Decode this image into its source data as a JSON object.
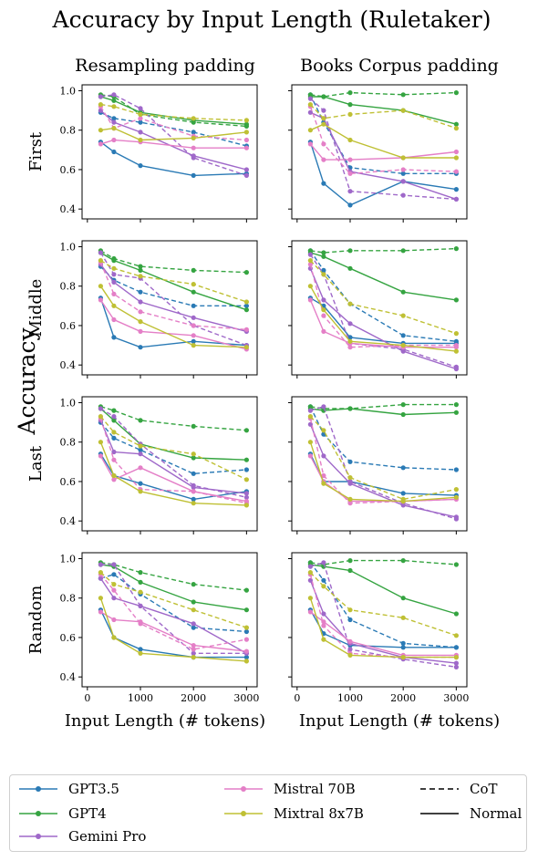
{
  "title": "Accuracy by Input Length (Ruletaker)",
  "columns": [
    "Resampling padding",
    "Books Corpus padding"
  ],
  "rows": [
    "First",
    "Middle",
    "Last",
    "Random"
  ],
  "ylabel": "Accuracy",
  "xlabel": "Input Length (# tokens)",
  "colors": {
    "GPT3.5": "#2a7ab5",
    "GPT4": "#35a441",
    "Gemini Pro": "#9f68c9",
    "Mistral 70B": "#e47fc7",
    "Mixtral 8x7B": "#bfc034"
  },
  "legend": {
    "models": [
      "GPT3.5",
      "GPT4",
      "Gemini Pro",
      "Mistral 70B",
      "Mixtral 8x7B"
    ],
    "styles": [
      {
        "label": "CoT",
        "dash": true
      },
      {
        "label": "Normal",
        "dash": false
      }
    ]
  },
  "chart_data": {
    "type": "line",
    "x": [
      250,
      500,
      1000,
      2000,
      3000
    ],
    "xticks": [
      0,
      1000,
      2000,
      3000
    ],
    "yticks": [
      0.4,
      0.6,
      0.8,
      1.0
    ],
    "xlim": [
      -100,
      3200
    ],
    "ylim": [
      0.35,
      1.03
    ],
    "grid": false,
    "legend_position": "bottom",
    "panels": [
      {
        "row": "First",
        "column": "Resampling padding",
        "series": [
          {
            "model": "GPT3.5",
            "style": "Normal",
            "values": [
              0.74,
              0.69,
              0.62,
              0.57,
              0.58
            ]
          },
          {
            "model": "GPT3.5",
            "style": "CoT",
            "values": [
              0.89,
              0.86,
              0.84,
              0.79,
              0.72
            ]
          },
          {
            "model": "GPT4",
            "style": "Normal",
            "values": [
              0.97,
              0.95,
              0.89,
              0.85,
              0.83
            ]
          },
          {
            "model": "GPT4",
            "style": "CoT",
            "values": [
              0.98,
              0.97,
              0.88,
              0.84,
              0.82
            ]
          },
          {
            "model": "Gemini Pro",
            "style": "Normal",
            "values": [
              0.9,
              0.84,
              0.79,
              0.67,
              0.6
            ]
          },
          {
            "model": "Gemini Pro",
            "style": "CoT",
            "values": [
              0.97,
              0.98,
              0.91,
              0.66,
              0.57
            ]
          },
          {
            "model": "Mistral 70B",
            "style": "Normal",
            "values": [
              0.73,
              0.75,
              0.74,
              0.71,
              0.71
            ]
          },
          {
            "model": "Mistral 70B",
            "style": "CoT",
            "values": [
              0.92,
              0.81,
              0.86,
              0.77,
              0.75
            ]
          },
          {
            "model": "Mixtral 8x7B",
            "style": "Normal",
            "values": [
              0.8,
              0.81,
              0.75,
              0.76,
              0.79
            ]
          },
          {
            "model": "Mixtral 8x7B",
            "style": "CoT",
            "values": [
              0.93,
              0.92,
              0.88,
              0.86,
              0.85
            ]
          }
        ]
      },
      {
        "row": "First",
        "column": "Books Corpus padding",
        "series": [
          {
            "model": "GPT3.5",
            "style": "Normal",
            "values": [
              0.74,
              0.53,
              0.42,
              0.54,
              0.5
            ]
          },
          {
            "model": "GPT3.5",
            "style": "CoT",
            "values": [
              0.98,
              0.84,
              0.61,
              0.58,
              0.58
            ]
          },
          {
            "model": "GPT4",
            "style": "Normal",
            "values": [
              0.97,
              0.97,
              0.93,
              0.9,
              0.83
            ]
          },
          {
            "model": "GPT4",
            "style": "CoT",
            "values": [
              0.98,
              0.97,
              0.99,
              0.98,
              0.99
            ]
          },
          {
            "model": "Gemini Pro",
            "style": "Normal",
            "values": [
              0.89,
              0.86,
              0.59,
              0.54,
              0.45
            ]
          },
          {
            "model": "Gemini Pro",
            "style": "CoT",
            "values": [
              0.96,
              0.9,
              0.49,
              0.47,
              0.45
            ]
          },
          {
            "model": "Mistral 70B",
            "style": "Normal",
            "values": [
              0.73,
              0.65,
              0.65,
              0.66,
              0.69
            ]
          },
          {
            "model": "Mistral 70B",
            "style": "CoT",
            "values": [
              0.92,
              0.73,
              0.58,
              0.6,
              0.59
            ]
          },
          {
            "model": "Mixtral 8x7B",
            "style": "Normal",
            "values": [
              0.8,
              0.83,
              0.75,
              0.66,
              0.66
            ]
          },
          {
            "model": "Mixtral 8x7B",
            "style": "CoT",
            "values": [
              0.93,
              0.86,
              0.88,
              0.9,
              0.81
            ]
          }
        ]
      },
      {
        "row": "Middle",
        "column": "Resampling padding",
        "series": [
          {
            "model": "GPT3.5",
            "style": "Normal",
            "values": [
              0.74,
              0.54,
              0.49,
              0.52,
              0.5
            ]
          },
          {
            "model": "GPT3.5",
            "style": "CoT",
            "values": [
              0.9,
              0.83,
              0.77,
              0.7,
              0.7
            ]
          },
          {
            "model": "GPT4",
            "style": "Normal",
            "values": [
              0.97,
              0.93,
              0.88,
              0.77,
              0.68
            ]
          },
          {
            "model": "GPT4",
            "style": "CoT",
            "values": [
              0.98,
              0.94,
              0.9,
              0.88,
              0.87
            ]
          },
          {
            "model": "Gemini Pro",
            "style": "Normal",
            "values": [
              0.91,
              0.82,
              0.72,
              0.64,
              0.57
            ]
          },
          {
            "model": "Gemini Pro",
            "style": "CoT",
            "values": [
              0.97,
              0.86,
              0.84,
              0.6,
              0.5
            ]
          },
          {
            "model": "Mistral 70B",
            "style": "Normal",
            "values": [
              0.73,
              0.63,
              0.57,
              0.55,
              0.48
            ]
          },
          {
            "model": "Mistral 70B",
            "style": "CoT",
            "values": [
              0.92,
              0.76,
              0.67,
              0.6,
              0.58
            ]
          },
          {
            "model": "Mixtral 8x7B",
            "style": "Normal",
            "values": [
              0.8,
              0.7,
              0.62,
              0.5,
              0.49
            ]
          },
          {
            "model": "Mixtral 8x7B",
            "style": "CoT",
            "values": [
              0.93,
              0.89,
              0.85,
              0.81,
              0.72
            ]
          }
        ]
      },
      {
        "row": "Middle",
        "column": "Books Corpus padding",
        "series": [
          {
            "model": "GPT3.5",
            "style": "Normal",
            "values": [
              0.74,
              0.7,
              0.54,
              0.51,
              0.51
            ]
          },
          {
            "model": "GPT3.5",
            "style": "CoT",
            "values": [
              0.98,
              0.88,
              0.71,
              0.55,
              0.52
            ]
          },
          {
            "model": "GPT4",
            "style": "Normal",
            "values": [
              0.97,
              0.95,
              0.89,
              0.77,
              0.73
            ]
          },
          {
            "model": "GPT4",
            "style": "CoT",
            "values": [
              0.98,
              0.97,
              0.98,
              0.98,
              0.99
            ]
          },
          {
            "model": "Gemini Pro",
            "style": "Normal",
            "values": [
              0.89,
              0.73,
              0.61,
              0.47,
              0.38
            ]
          },
          {
            "model": "Gemini Pro",
            "style": "CoT",
            "values": [
              0.96,
              0.86,
              0.51,
              0.48,
              0.39
            ]
          },
          {
            "model": "Mistral 70B",
            "style": "Normal",
            "values": [
              0.73,
              0.57,
              0.51,
              0.49,
              0.49
            ]
          },
          {
            "model": "Mistral 70B",
            "style": "CoT",
            "values": [
              0.91,
              0.65,
              0.49,
              0.5,
              0.5
            ]
          },
          {
            "model": "Mixtral 8x7B",
            "style": "Normal",
            "values": [
              0.8,
              0.68,
              0.52,
              0.5,
              0.47
            ]
          },
          {
            "model": "Mixtral 8x7B",
            "style": "CoT",
            "values": [
              0.93,
              0.86,
              0.71,
              0.65,
              0.56
            ]
          }
        ]
      },
      {
        "row": "Last",
        "column": "Resampling padding",
        "series": [
          {
            "model": "GPT3.5",
            "style": "Normal",
            "values": [
              0.74,
              0.63,
              0.59,
              0.51,
              0.55
            ]
          },
          {
            "model": "GPT3.5",
            "style": "CoT",
            "values": [
              0.9,
              0.82,
              0.76,
              0.64,
              0.66
            ]
          },
          {
            "model": "GPT4",
            "style": "Normal",
            "values": [
              0.97,
              0.91,
              0.79,
              0.72,
              0.71
            ]
          },
          {
            "model": "GPT4",
            "style": "CoT",
            "values": [
              0.98,
              0.96,
              0.91,
              0.88,
              0.86
            ]
          },
          {
            "model": "Gemini Pro",
            "style": "Normal",
            "values": [
              0.91,
              0.75,
              0.74,
              0.57,
              0.54
            ]
          },
          {
            "model": "Gemini Pro",
            "style": "CoT",
            "values": [
              0.97,
              0.93,
              0.79,
              0.58,
              0.52
            ]
          },
          {
            "model": "Mistral 70B",
            "style": "Normal",
            "values": [
              0.73,
              0.61,
              0.67,
              0.55,
              0.5
            ]
          },
          {
            "model": "Mistral 70B",
            "style": "CoT",
            "values": [
              0.92,
              0.71,
              0.56,
              0.55,
              0.49
            ]
          },
          {
            "model": "Mixtral 8x7B",
            "style": "Normal",
            "values": [
              0.8,
              0.63,
              0.55,
              0.49,
              0.48
            ]
          },
          {
            "model": "Mixtral 8x7B",
            "style": "CoT",
            "values": [
              0.93,
              0.85,
              0.78,
              0.74,
              0.61
            ]
          }
        ]
      },
      {
        "row": "Last",
        "column": "Books Corpus padding",
        "series": [
          {
            "model": "GPT3.5",
            "style": "Normal",
            "values": [
              0.74,
              0.6,
              0.6,
              0.54,
              0.53
            ]
          },
          {
            "model": "GPT3.5",
            "style": "CoT",
            "values": [
              0.98,
              0.84,
              0.7,
              0.67,
              0.66
            ]
          },
          {
            "model": "GPT4",
            "style": "Normal",
            "values": [
              0.97,
              0.96,
              0.97,
              0.94,
              0.95
            ]
          },
          {
            "model": "GPT4",
            "style": "CoT",
            "values": [
              0.98,
              0.97,
              0.97,
              0.99,
              0.99
            ]
          },
          {
            "model": "Gemini Pro",
            "style": "Normal",
            "values": [
              0.89,
              0.73,
              0.59,
              0.48,
              0.42
            ]
          },
          {
            "model": "Gemini Pro",
            "style": "CoT",
            "values": [
              0.96,
              0.98,
              0.6,
              0.49,
              0.41
            ]
          },
          {
            "model": "Mistral 70B",
            "style": "Normal",
            "values": [
              0.73,
              0.6,
              0.5,
              0.5,
              0.51
            ]
          },
          {
            "model": "Mistral 70B",
            "style": "CoT",
            "values": [
              0.92,
              0.63,
              0.49,
              0.5,
              0.51
            ]
          },
          {
            "model": "Mixtral 8x7B",
            "style": "Normal",
            "values": [
              0.8,
              0.59,
              0.51,
              0.5,
              0.52
            ]
          },
          {
            "model": "Mixtral 8x7B",
            "style": "CoT",
            "values": [
              0.93,
              0.86,
              0.62,
              0.51,
              0.56
            ]
          }
        ]
      },
      {
        "row": "Random",
        "column": "Resampling padding",
        "series": [
          {
            "model": "GPT3.5",
            "style": "Normal",
            "values": [
              0.74,
              0.6,
              0.54,
              0.5,
              0.5
            ]
          },
          {
            "model": "GPT3.5",
            "style": "CoT",
            "values": [
              0.9,
              0.92,
              0.82,
              0.65,
              0.63
            ]
          },
          {
            "model": "GPT4",
            "style": "Normal",
            "values": [
              0.97,
              0.96,
              0.88,
              0.78,
              0.74
            ]
          },
          {
            "model": "GPT4",
            "style": "CoT",
            "values": [
              0.98,
              0.97,
              0.93,
              0.87,
              0.84
            ]
          },
          {
            "model": "Gemini Pro",
            "style": "Normal",
            "values": [
              0.9,
              0.8,
              0.76,
              0.67,
              0.52
            ]
          },
          {
            "model": "Gemini Pro",
            "style": "CoT",
            "values": [
              0.97,
              0.97,
              0.76,
              0.52,
              0.52
            ]
          },
          {
            "model": "Mistral 70B",
            "style": "Normal",
            "values": [
              0.73,
              0.69,
              0.68,
              0.56,
              0.53
            ]
          },
          {
            "model": "Mistral 70B",
            "style": "CoT",
            "values": [
              0.92,
              0.84,
              0.67,
              0.54,
              0.59
            ]
          },
          {
            "model": "Mixtral 8x7B",
            "style": "Normal",
            "values": [
              0.8,
              0.6,
              0.52,
              0.5,
              0.48
            ]
          },
          {
            "model": "Mixtral 8x7B",
            "style": "CoT",
            "values": [
              0.93,
              0.87,
              0.83,
              0.74,
              0.65
            ]
          }
        ]
      },
      {
        "row": "Random",
        "column": "Books Corpus padding",
        "series": [
          {
            "model": "GPT3.5",
            "style": "Normal",
            "values": [
              0.74,
              0.62,
              0.56,
              0.55,
              0.55
            ]
          },
          {
            "model": "GPT3.5",
            "style": "CoT",
            "values": [
              0.98,
              0.89,
              0.69,
              0.57,
              0.55
            ]
          },
          {
            "model": "GPT4",
            "style": "Normal",
            "values": [
              0.97,
              0.96,
              0.94,
              0.8,
              0.72
            ]
          },
          {
            "model": "GPT4",
            "style": "CoT",
            "values": [
              0.98,
              0.97,
              0.99,
              0.99,
              0.97
            ]
          },
          {
            "model": "Gemini Pro",
            "style": "Normal",
            "values": [
              0.89,
              0.72,
              0.57,
              0.5,
              0.47
            ]
          },
          {
            "model": "Gemini Pro",
            "style": "CoT",
            "values": [
              0.96,
              0.98,
              0.54,
              0.49,
              0.45
            ]
          },
          {
            "model": "Mistral 70B",
            "style": "Normal",
            "values": [
              0.73,
              0.68,
              0.58,
              0.51,
              0.51
            ]
          },
          {
            "model": "Mistral 70B",
            "style": "CoT",
            "values": [
              0.92,
              0.66,
              0.52,
              0.5,
              0.5
            ]
          },
          {
            "model": "Mixtral 8x7B",
            "style": "Normal",
            "values": [
              0.8,
              0.59,
              0.51,
              0.5,
              0.5
            ]
          },
          {
            "model": "Mixtral 8x7B",
            "style": "CoT",
            "values": [
              0.93,
              0.86,
              0.74,
              0.7,
              0.61
            ]
          }
        ]
      }
    ]
  }
}
